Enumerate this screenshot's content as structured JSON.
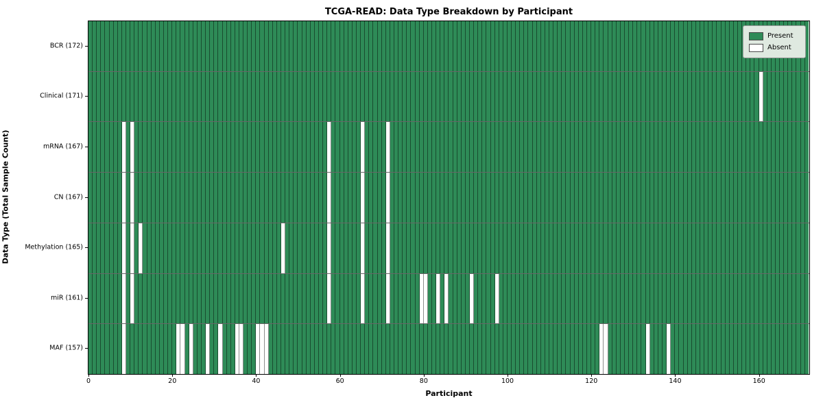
{
  "chart_data": {
    "type": "heatmap",
    "title": "TCGA-READ: Data Type Breakdown by Participant",
    "xlabel": "Participant",
    "ylabel": "Data Type (Total Sample Count)",
    "n_participants": 172,
    "x_ticks": [
      0,
      20,
      40,
      60,
      80,
      100,
      120,
      140,
      160
    ],
    "legend_position": "upper right",
    "grid": "cell-edges",
    "colors": {
      "present": "#2E8B57",
      "absent": "#FFFFFF",
      "edge": "rgba(0,0,0,0.45)"
    },
    "legend": [
      {
        "label": "Present",
        "color": "#2E8B57"
      },
      {
        "label": "Absent",
        "color": "#FFFFFF"
      }
    ],
    "rows": [
      {
        "label": "BCR (172)",
        "data_type": "BCR",
        "total_sample_count": 172,
        "absent_participants": []
      },
      {
        "label": "Clinical (171)",
        "data_type": "Clinical",
        "total_sample_count": 171,
        "absent_participants": [
          160
        ]
      },
      {
        "label": "mRNA (167)",
        "data_type": "mRNA",
        "total_sample_count": 167,
        "absent_participants": [
          8,
          10,
          57,
          65,
          71
        ]
      },
      {
        "label": "CN (167)",
        "data_type": "CN",
        "total_sample_count": 167,
        "absent_participants": [
          8,
          10,
          57,
          65,
          71
        ]
      },
      {
        "label": "Methylation (165)",
        "data_type": "Methylation",
        "total_sample_count": 165,
        "absent_participants": [
          8,
          10,
          12,
          46,
          57,
          65,
          71
        ]
      },
      {
        "label": "miR (161)",
        "data_type": "miR",
        "total_sample_count": 161,
        "absent_participants": [
          8,
          10,
          57,
          65,
          71,
          79,
          80,
          83,
          85,
          91,
          97
        ]
      },
      {
        "label": "MAF (157)",
        "data_type": "MAF",
        "total_sample_count": 157,
        "absent_participants": [
          8,
          21,
          22,
          24,
          28,
          31,
          35,
          36,
          40,
          41,
          42,
          122,
          123,
          133,
          138
        ]
      }
    ]
  }
}
